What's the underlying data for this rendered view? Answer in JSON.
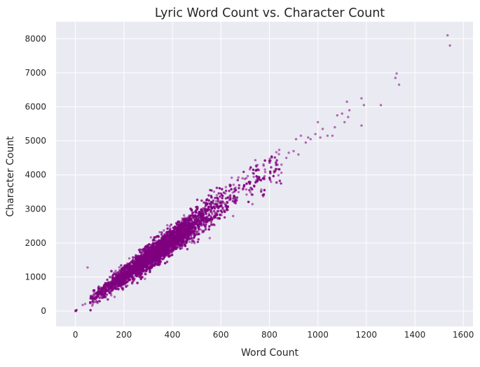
{
  "chart_data": {
    "type": "scatter",
    "title": "Lyric Word Count vs. Character Count",
    "xlabel": "Word Count",
    "ylabel": "Character Count",
    "xlim": [
      -80,
      1640
    ],
    "ylim": [
      -450,
      8500
    ],
    "xticks": [
      0,
      200,
      400,
      600,
      800,
      1000,
      1200,
      1400,
      1600
    ],
    "yticks": [
      0,
      1000,
      2000,
      3000,
      4000,
      5000,
      6000,
      7000,
      8000
    ],
    "grid": true,
    "background_color": "#eaeaf2",
    "grid_color": "#ffffff",
    "point_color": "#800080",
    "point_opacity": 0.55,
    "point_count_approx": 6000,
    "trend": {
      "description": "dense linear band, characters approximately 5.2 per word",
      "slope": 5.2,
      "intercept": 0
    },
    "series": [
      {
        "name": "",
        "points": [
          [
            0,
            0
          ],
          [
            1,
            10
          ],
          [
            2,
            5
          ],
          [
            3,
            25
          ],
          [
            5,
            30
          ],
          [
            30,
            180
          ],
          [
            40,
            210
          ],
          [
            50,
            1280
          ],
          [
            70,
            360
          ],
          [
            80,
            420
          ],
          [
            95,
            480
          ],
          [
            850,
            4300
          ],
          [
            870,
            4500
          ],
          [
            880,
            4650
          ],
          [
            900,
            4700
          ],
          [
            910,
            5050
          ],
          [
            920,
            4600
          ],
          [
            930,
            5150
          ],
          [
            950,
            4950
          ],
          [
            960,
            5100
          ],
          [
            970,
            5050
          ],
          [
            990,
            5200
          ],
          [
            1000,
            5550
          ],
          [
            1010,
            5100
          ],
          [
            1020,
            5350
          ],
          [
            1040,
            5150
          ],
          [
            1060,
            5150
          ],
          [
            1070,
            5400
          ],
          [
            1080,
            5750
          ],
          [
            1100,
            5800
          ],
          [
            1110,
            5550
          ],
          [
            1120,
            6150
          ],
          [
            1125,
            5700
          ],
          [
            1130,
            5900
          ],
          [
            1180,
            5450
          ],
          [
            1180,
            6250
          ],
          [
            1190,
            6050
          ],
          [
            1260,
            6050
          ],
          [
            1320,
            6850
          ],
          [
            1325,
            6980
          ],
          [
            1335,
            6650
          ],
          [
            1535,
            8100
          ],
          [
            1545,
            7800
          ]
        ]
      }
    ]
  }
}
